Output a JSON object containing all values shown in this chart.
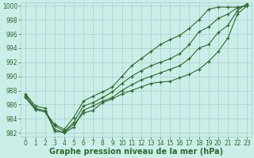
{
  "x": [
    0,
    1,
    2,
    3,
    4,
    5,
    6,
    7,
    8,
    9,
    10,
    11,
    12,
    13,
    14,
    15,
    16,
    17,
    18,
    19,
    20,
    21,
    22,
    23
  ],
  "series": [
    [
      987.5,
      985.8,
      985.5,
      982.2,
      982.1,
      983.2,
      984.8,
      985.2,
      986.3,
      986.8,
      987.5,
      988.0,
      988.5,
      989.0,
      989.2,
      989.3,
      989.8,
      990.3,
      991.0,
      992.1,
      993.5,
      995.4,
      998.8,
      1000.0
    ],
    [
      987.3,
      985.5,
      985.1,
      982.5,
      982.0,
      982.8,
      985.2,
      985.8,
      986.5,
      987.0,
      988.0,
      988.8,
      989.5,
      990.0,
      990.5,
      991.0,
      991.5,
      992.5,
      994.0,
      994.5,
      996.2,
      997.2,
      999.3,
      1000.3
    ],
    [
      987.0,
      985.3,
      985.0,
      983.0,
      982.2,
      983.5,
      985.8,
      986.3,
      987.0,
      987.8,
      989.0,
      990.0,
      990.8,
      991.5,
      992.0,
      992.5,
      993.2,
      994.5,
      996.3,
      997.0,
      998.2,
      998.8,
      999.7,
      1000.0
    ],
    [
      987.0,
      985.3,
      985.0,
      983.2,
      982.5,
      984.2,
      986.5,
      987.2,
      987.8,
      988.5,
      990.0,
      991.5,
      992.5,
      993.5,
      994.5,
      995.2,
      995.8,
      996.8,
      998.0,
      999.5,
      999.8,
      999.8,
      999.8,
      1000.0
    ]
  ],
  "line_color": "#2d6a2d",
  "marker_color": "#2d6a2d",
  "bg_color": "#cceee8",
  "grid_color": "#aacccc",
  "xlabel": "Graphe pression niveau de la mer (hPa)",
  "ylim": [
    981.5,
    1000.5
  ],
  "xlim": [
    -0.5,
    23.5
  ],
  "yticks": [
    982,
    984,
    986,
    988,
    990,
    992,
    994,
    996,
    998,
    1000
  ],
  "xticks": [
    0,
    1,
    2,
    3,
    4,
    5,
    6,
    7,
    8,
    9,
    10,
    11,
    12,
    13,
    14,
    15,
    16,
    17,
    18,
    19,
    20,
    21,
    22,
    23
  ],
  "tick_fontsize": 5.5,
  "xlabel_fontsize": 7.0,
  "line_width": 0.8,
  "marker_size": 3.5,
  "marker_ew": 0.9
}
